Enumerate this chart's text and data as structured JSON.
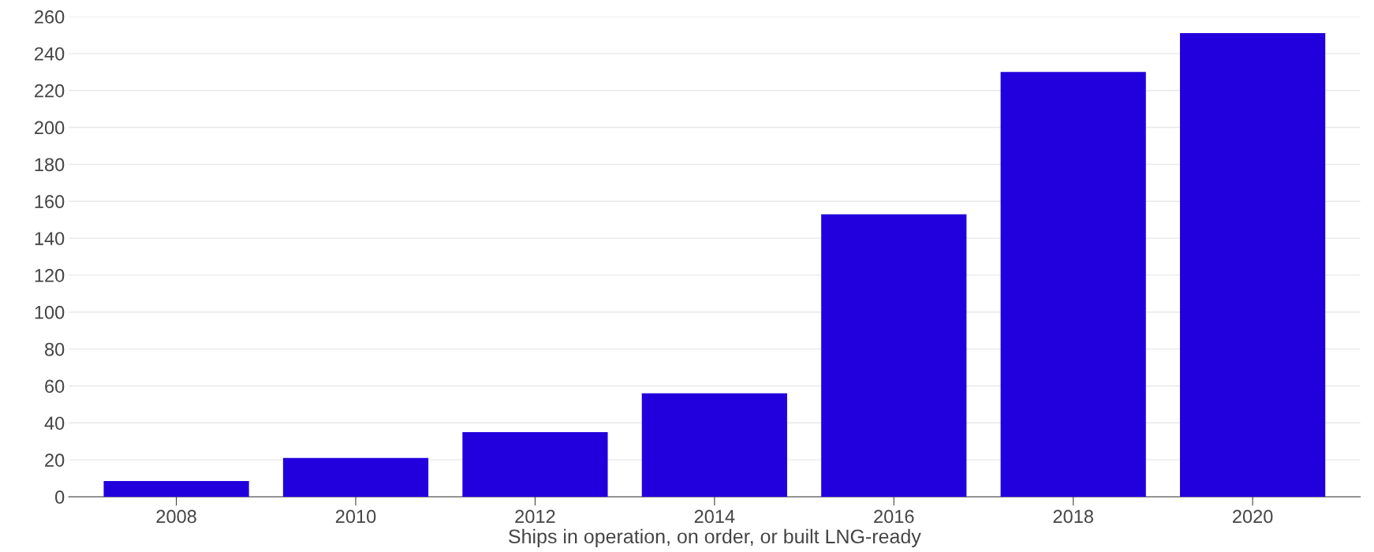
{
  "chart_data": {
    "type": "bar",
    "xlabel": "Ships in operation, on order, or built LNG-ready",
    "categories": [
      "2008",
      "2010",
      "2012",
      "2014",
      "2016",
      "2018",
      "2020"
    ],
    "values": [
      8.5,
      21,
      35,
      56,
      153,
      230,
      251
    ],
    "color": "#2200dd",
    "ylim": [
      0,
      260
    ],
    "yticks": [
      0,
      20,
      40,
      60,
      80,
      100,
      120,
      140,
      160,
      180,
      200,
      220,
      240,
      260
    ],
    "grid": "y"
  }
}
